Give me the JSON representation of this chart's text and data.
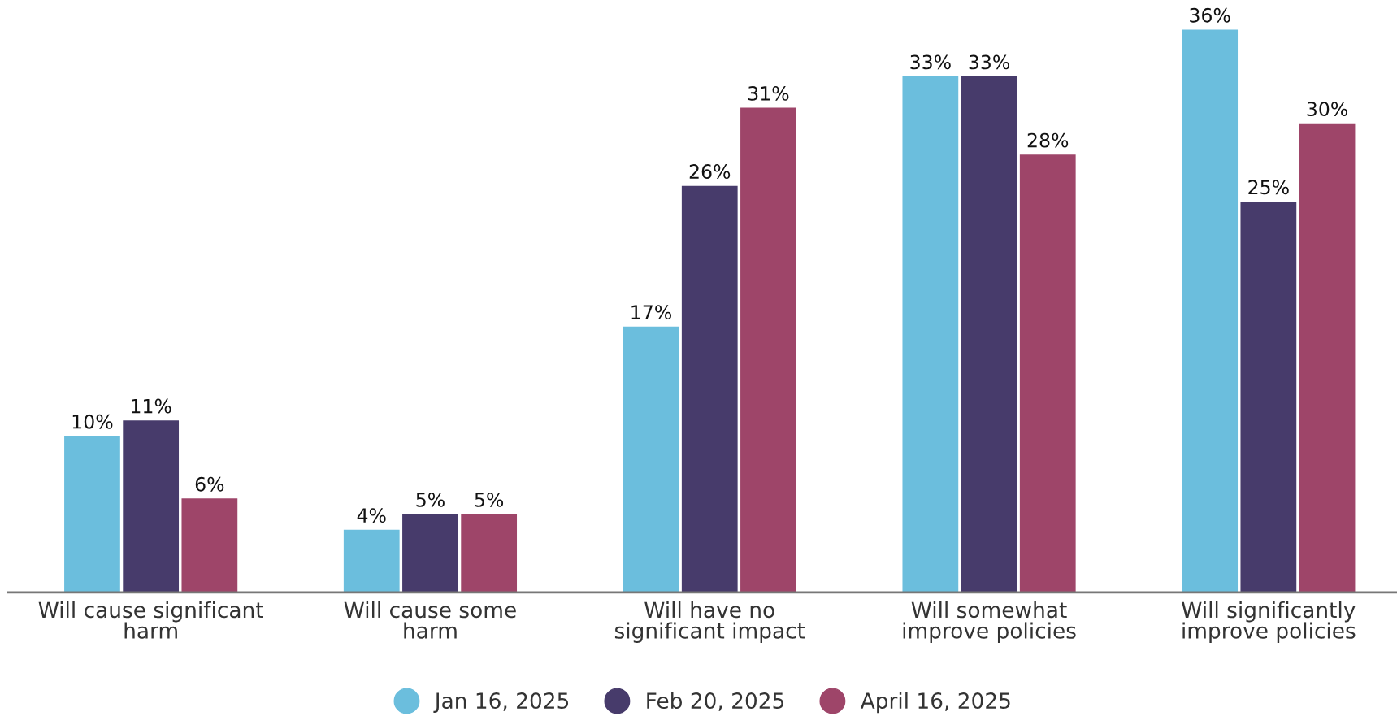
{
  "chart_data": {
    "type": "bar",
    "categories": [
      "Will cause significant\nharm",
      "Will cause some\nharm",
      "Will have no\nsignificant impact",
      "Will somewhat\nimprove policies",
      "Will significantly\nimprove policies"
    ],
    "series": [
      {
        "name": "Jan 16, 2025",
        "color": "#6bbedd",
        "values": [
          10,
          4,
          17,
          33,
          36
        ],
        "value_labels": [
          "10%",
          "4%",
          "17%",
          "33%",
          "36%"
        ]
      },
      {
        "name": "Feb 20, 2025",
        "color": "#473b6b",
        "values": [
          11,
          5,
          26,
          33,
          25
        ],
        "value_labels": [
          "11%",
          "5%",
          "26%",
          "33%",
          "25%"
        ]
      },
      {
        "name": "April 16, 2025",
        "color": "#9e4569",
        "values": [
          6,
          5,
          31,
          28,
          30
        ],
        "value_labels": [
          "6%",
          "5%",
          "31%",
          "28%",
          "30%"
        ]
      }
    ],
    "grid": false,
    "legend": "bottom",
    "marker": "circle"
  }
}
